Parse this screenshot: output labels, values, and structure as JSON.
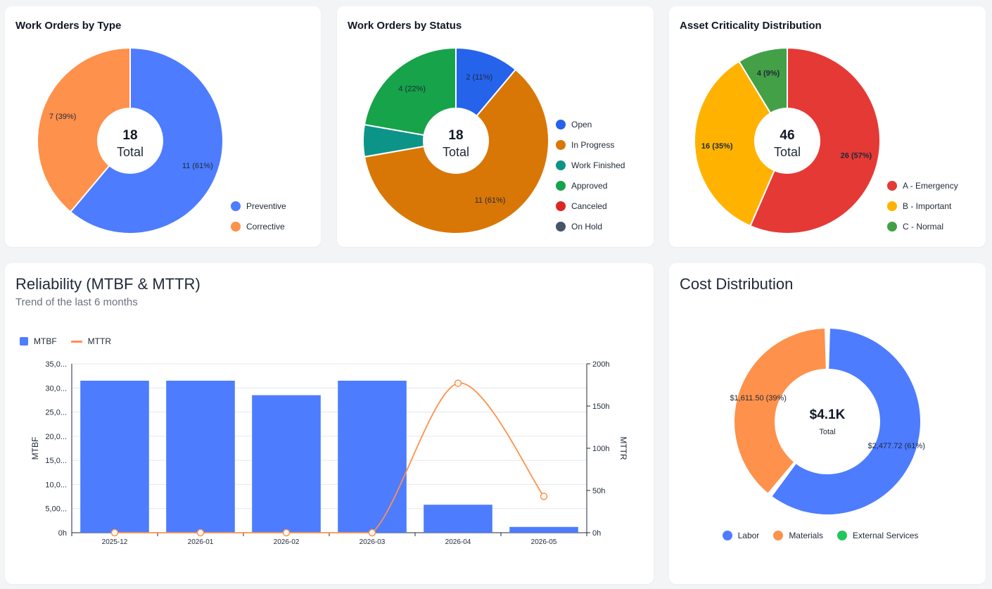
{
  "chart_data": [
    {
      "id": "type",
      "type": "pie",
      "title": "Work Orders by Type",
      "center_value": "18",
      "center_label": "Total",
      "slices": [
        {
          "name": "Preventive",
          "value": 11,
          "label": "11 (61%)",
          "color": "#4d7cfe"
        },
        {
          "name": "Corrective",
          "value": 7,
          "label": "7 (39%)",
          "color": "#fe914b"
        }
      ],
      "legend_position": "bottom-right"
    },
    {
      "id": "status",
      "type": "pie",
      "title": "Work Orders by Status",
      "center_value": "18",
      "center_label": "Total",
      "slices": [
        {
          "name": "Open",
          "value": 2,
          "label": "2 (11%)",
          "color": "#2563eb"
        },
        {
          "name": "In Progress",
          "value": 11,
          "label": "11 (61%)",
          "color": "#d97706"
        },
        {
          "name": "Work Finished",
          "value": 1,
          "label": "",
          "color": "#0d9488"
        },
        {
          "name": "Approved",
          "value": 4,
          "label": "4 (22%)",
          "color": "#16a34a"
        },
        {
          "name": "Canceled",
          "value": 0,
          "label": "",
          "color": "#dc2626"
        },
        {
          "name": "On Hold",
          "value": 0,
          "label": "",
          "color": "#475569"
        }
      ],
      "legend_position": "right"
    },
    {
      "id": "criticality",
      "type": "pie",
      "title": "Asset Criticality Distribution",
      "center_value": "46",
      "center_label": "Total",
      "slices": [
        {
          "name": "A - Emergency",
          "value": 26,
          "label": "26 (57%)",
          "color": "#e53935"
        },
        {
          "name": "B - Important",
          "value": 16,
          "label": "16 (35%)",
          "color": "#ffb300"
        },
        {
          "name": "C - Normal",
          "value": 4,
          "label": "4 (9%)",
          "color": "#43a047"
        }
      ],
      "legend_position": "bottom-right"
    },
    {
      "id": "reliability",
      "type": "bar",
      "title": "Reliability (MTBF & MTTR)",
      "subtitle": "Trend of the last 6 months",
      "categories": [
        "2025-12",
        "2026-01",
        "2026-02",
        "2026-03",
        "2026-04",
        "2026-05"
      ],
      "series": [
        {
          "name": "MTBF",
          "type": "bar",
          "axis": "left",
          "color": "#4d7cfe",
          "values": [
            31500,
            31500,
            28500,
            31500,
            5800,
            1200
          ]
        },
        {
          "name": "MTTR",
          "type": "line",
          "axis": "right",
          "color": "#fe914b",
          "values": [
            0,
            0,
            0,
            0,
            177,
            43
          ]
        }
      ],
      "ylabel": "MTBF",
      "y2label": "MTTR",
      "ylim": [
        0,
        35000
      ],
      "y2lim": [
        0,
        200
      ],
      "yticks": [
        "0h",
        "5,00...",
        "10,0...",
        "15,0...",
        "20,0...",
        "25,0...",
        "30,0...",
        "35,0..."
      ],
      "y2ticks": [
        "0h",
        "50h",
        "100h",
        "150h",
        "200h"
      ],
      "grid": true,
      "legend_position": "top-left"
    },
    {
      "id": "cost",
      "type": "pie",
      "title": "Cost Distribution",
      "center_value": "$4.1K",
      "center_label": "Total",
      "slices": [
        {
          "name": "Labor",
          "value": 2477.72,
          "label": "$2,477.72 (61%)",
          "color": "#4d7cfe"
        },
        {
          "name": "Materials",
          "value": 1611.5,
          "label": "$1,611.50 (39%)",
          "color": "#fe914b"
        },
        {
          "name": "External Services",
          "value": 0,
          "label": "",
          "color": "#22c55e"
        }
      ],
      "legend_position": "bottom"
    }
  ]
}
